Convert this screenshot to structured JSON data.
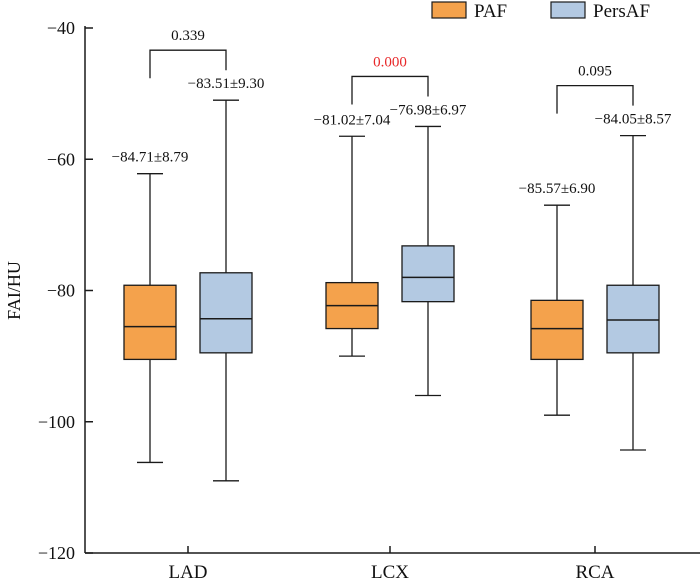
{
  "chart_data": {
    "type": "box",
    "title": "",
    "xlabel": "",
    "ylabel": "FAI/HU",
    "ylim": [
      -120,
      -40
    ],
    "yticks": [
      -120,
      -100,
      -80,
      -60,
      -40
    ],
    "ytick_labels": [
      "−120",
      "−100",
      "−80",
      "−60",
      "−40"
    ],
    "categories": [
      "LAD",
      "LCX",
      "RCA"
    ],
    "legend": {
      "position": "top-right"
    },
    "colors": {
      "PAF": "#f4a24c",
      "PersAF": "#b3c9e2",
      "stroke": "#1a1a1a",
      "p_significant": "#e8282a",
      "p_normal": "#111111"
    },
    "series": [
      {
        "name": "PAF",
        "boxes": [
          {
            "category": "LAD",
            "whisker_low": -106.2,
            "q1": -90.5,
            "median": -85.5,
            "q3": -79.2,
            "whisker_high": -62.2,
            "stat": "−84.71±8.79"
          },
          {
            "category": "LCX",
            "whisker_low": -90.0,
            "q1": -85.8,
            "median": -82.3,
            "q3": -78.8,
            "whisker_high": -56.5,
            "stat": "−81.02±7.04"
          },
          {
            "category": "RCA",
            "whisker_low": -99.0,
            "q1": -90.5,
            "median": -85.8,
            "q3": -81.5,
            "whisker_high": -67.0,
            "stat": "−85.57±6.90"
          }
        ]
      },
      {
        "name": "PersAF",
        "boxes": [
          {
            "category": "LAD",
            "whisker_low": -109.0,
            "q1": -89.5,
            "median": -84.3,
            "q3": -77.3,
            "whisker_high": -51.0,
            "stat": "−83.51±9.30"
          },
          {
            "category": "LCX",
            "whisker_low": -96.0,
            "q1": -81.7,
            "median": -78.0,
            "q3": -73.2,
            "whisker_high": -55.0,
            "stat": "−76.98±6.97"
          },
          {
            "category": "RCA",
            "whisker_low": -104.3,
            "q1": -89.5,
            "median": -84.5,
            "q3": -79.2,
            "whisker_high": -56.4,
            "stat": "−84.05±8.57"
          }
        ]
      }
    ],
    "comparisons": [
      {
        "category": "LAD",
        "p": "0.339",
        "significant": false
      },
      {
        "category": "LCX",
        "p": "0.000",
        "significant": true
      },
      {
        "category": "RCA",
        "p": "0.095",
        "significant": false
      }
    ]
  }
}
